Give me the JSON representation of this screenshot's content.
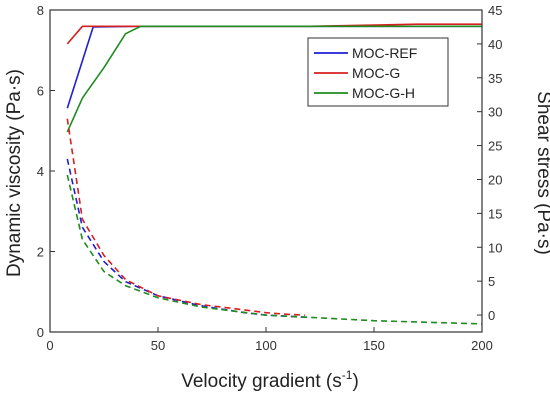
{
  "chart_data": {
    "type": "line",
    "title": "",
    "xlabel": "Velocity gradient (s",
    "xlabel_sup": "-1",
    "xlabel_end": ")",
    "ylabel_left": "Dynamic viscosity (Pa·s)",
    "ylabel_right": "Shear stress (Pa·s)",
    "xlim": [
      0,
      200
    ],
    "ylim_left": [
      0,
      8
    ],
    "ylim_right": [
      -2.5,
      45
    ],
    "xticks": [
      0,
      50,
      100,
      150,
      200
    ],
    "yticks_left": [
      0,
      2,
      4,
      6,
      8
    ],
    "yticks_right": [
      0,
      5,
      10,
      15,
      20,
      25,
      30,
      35,
      40,
      45
    ],
    "grid": false,
    "legend_position": "top-right",
    "series": [
      {
        "name": "MOC-REF",
        "color": "#1f1fd6",
        "axis": "right",
        "style": "solid",
        "x": [
          8,
          20,
          40,
          120,
          200
        ],
        "y": [
          30.5,
          42.5,
          42.6,
          42.6,
          42.6
        ]
      },
      {
        "name": "MOC-G",
        "color": "#d62020",
        "axis": "right",
        "style": "solid",
        "x": [
          8,
          15,
          40,
          120,
          170,
          200
        ],
        "y": [
          40.0,
          42.6,
          42.6,
          42.6,
          42.9,
          42.9
        ]
      },
      {
        "name": "MOC-G-H",
        "color": "#1f8c1f",
        "axis": "right",
        "style": "solid",
        "x": [
          8,
          15,
          25,
          35,
          42,
          120,
          200
        ],
        "y": [
          27.0,
          32.0,
          36.5,
          41.5,
          42.6,
          42.6,
          42.6
        ]
      },
      {
        "name": "MOC-REF",
        "color": "#1f1fd6",
        "axis": "left",
        "style": "dashed",
        "x": [
          8,
          15,
          25,
          35,
          50,
          70,
          90,
          100,
          110,
          120
        ],
        "y": [
          4.3,
          2.6,
          1.75,
          1.25,
          0.9,
          0.65,
          0.48,
          0.42,
          0.39,
          0.36
        ]
      },
      {
        "name": "MOC-G",
        "color": "#d62020",
        "axis": "left",
        "style": "dashed",
        "x": [
          8,
          15,
          25,
          35,
          50,
          70,
          90,
          100,
          110,
          118
        ],
        "y": [
          5.3,
          2.8,
          1.9,
          1.3,
          0.9,
          0.68,
          0.55,
          0.48,
          0.44,
          0.42
        ]
      },
      {
        "name": "MOC-G-H",
        "color": "#1f8c1f",
        "axis": "left",
        "style": "dashed",
        "x": [
          8,
          15,
          25,
          35,
          50,
          70,
          100,
          150,
          200
        ],
        "y": [
          3.9,
          2.3,
          1.5,
          1.15,
          0.85,
          0.62,
          0.42,
          0.28,
          0.2
        ]
      }
    ],
    "legend": [
      {
        "label": "MOC-REF",
        "color": "#1f1fd6"
      },
      {
        "label": "MOC-G",
        "color": "#d62020"
      },
      {
        "label": "MOC-G-H",
        "color": "#1f8c1f"
      }
    ]
  }
}
